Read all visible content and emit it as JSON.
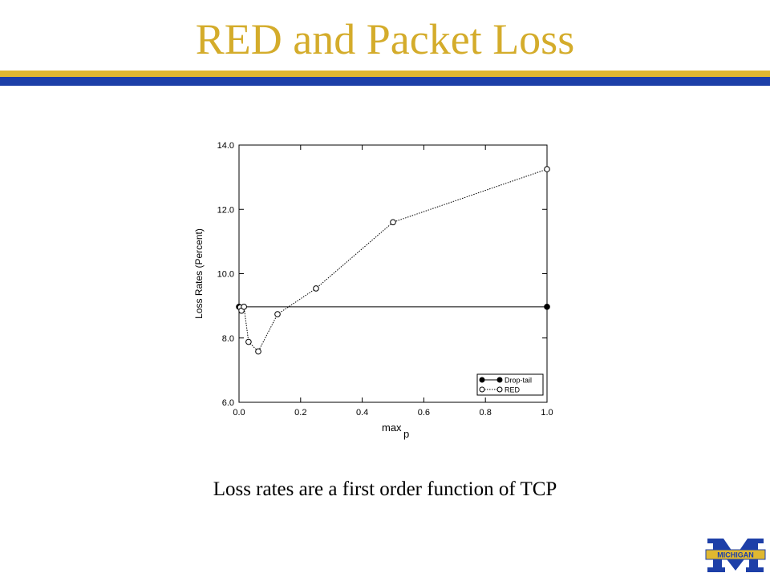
{
  "header": {
    "title": "RED and Packet Loss"
  },
  "chart_data": {
    "type": "line",
    "y_label": "Loss Rates (Percent)",
    "x_label": "max",
    "x_label_subscript": "p",
    "xlim": [
      0.0,
      1.0
    ],
    "xticks": [
      {
        "value": 0,
        "label": "0.0"
      },
      {
        "value": 0.2,
        "label": "0.2"
      },
      {
        "value": 0.4,
        "label": "0.4"
      },
      {
        "value": 0.6,
        "label": "0.6"
      },
      {
        "value": 0.8,
        "label": "0.8"
      },
      {
        "value": 1,
        "label": "1.0"
      }
    ],
    "ylim": [
      6.0,
      14.0
    ],
    "yticks": [
      {
        "value": 6,
        "label": "6.0"
      },
      {
        "value": 8,
        "label": "8.0"
      },
      {
        "value": 10,
        "label": "10.0"
      },
      {
        "value": 12,
        "label": "12.0"
      },
      {
        "value": 14,
        "label": "14.0"
      }
    ],
    "legend": "lower right",
    "series": [
      {
        "name": "Drop-tail",
        "color": "#000000",
        "line_style": "solid",
        "marker": "filled",
        "x": [
          0.0,
          1.0
        ],
        "values": [
          8.97,
          8.97
        ]
      },
      {
        "name": "RED",
        "color": "#000000",
        "line_style": "dotted",
        "marker": "open",
        "x": [
          0.004,
          0.008,
          0.016,
          0.031,
          0.0625,
          0.125,
          0.25,
          0.5,
          1.0
        ],
        "values": [
          8.95,
          8.85,
          8.97,
          7.88,
          7.58,
          8.74,
          9.54,
          11.6,
          13.25
        ]
      }
    ]
  },
  "caption": "Loss rates are a first order function of TCP",
  "logo": {
    "text": "MICHIGAN"
  }
}
